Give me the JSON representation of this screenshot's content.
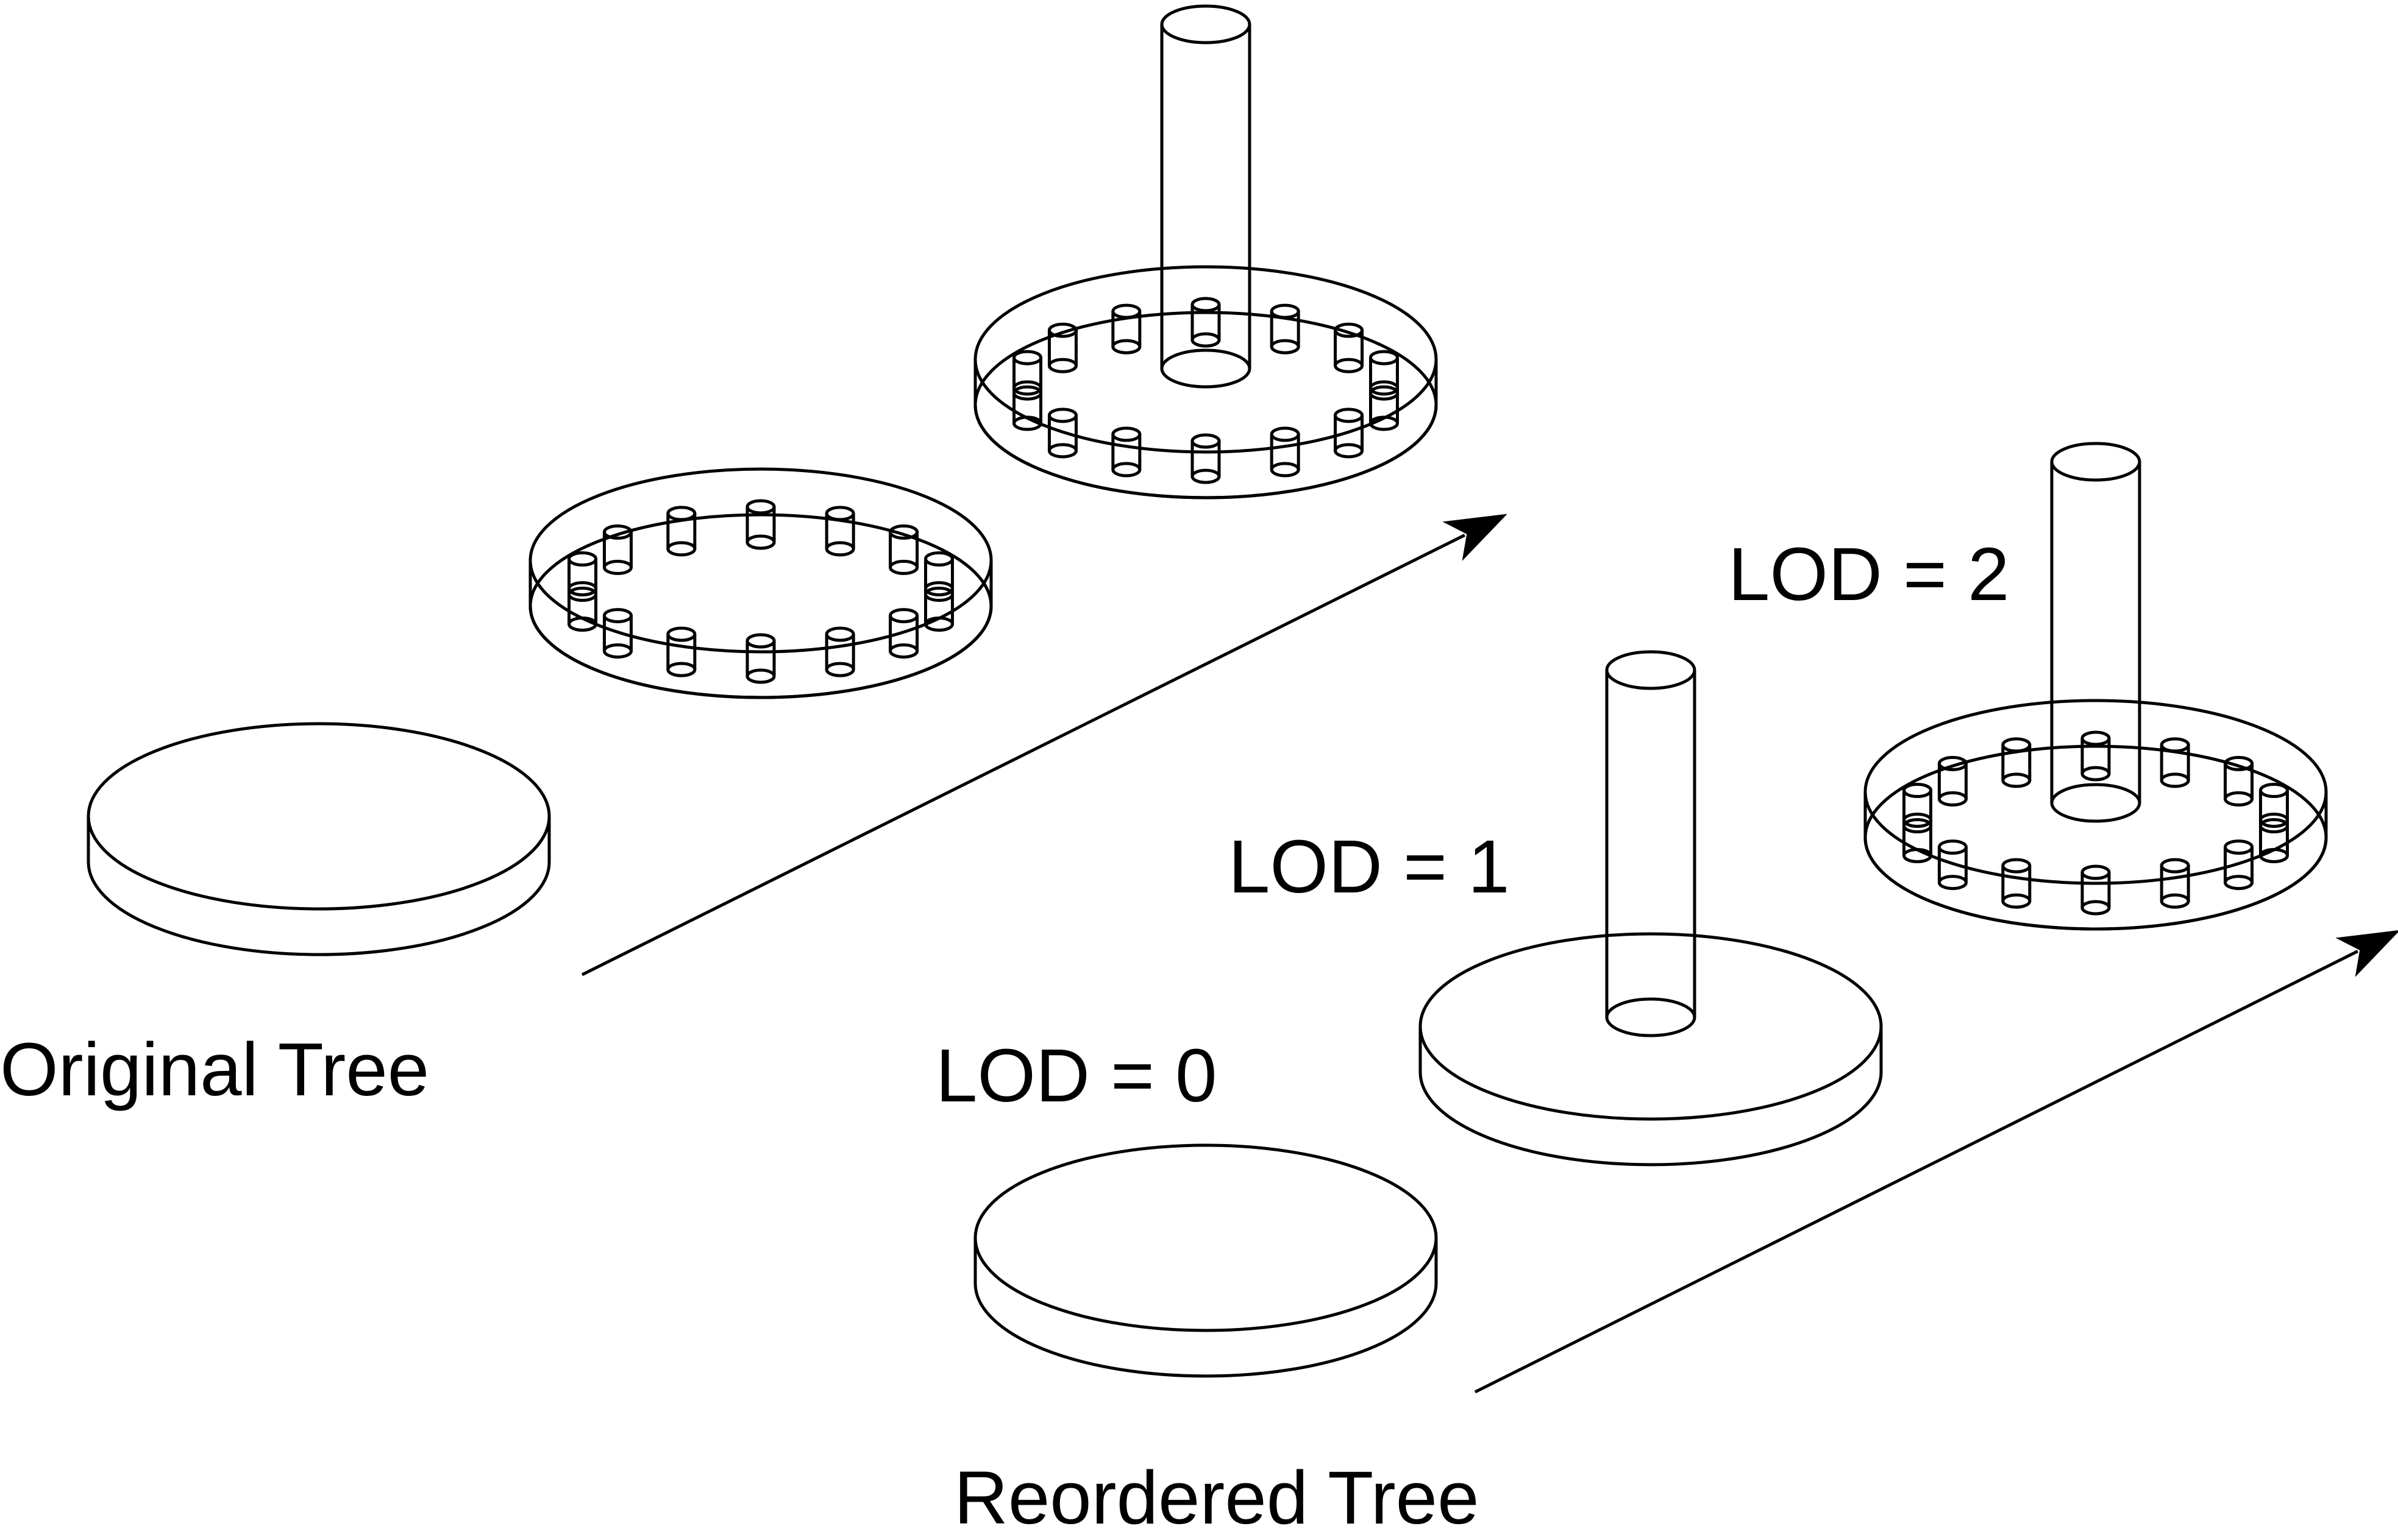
{
  "labels": {
    "original_tree": "Original Tree",
    "reordered_tree": "Reordered Tree",
    "lod_0": "LOD = 0",
    "lod_1": "LOD = 1",
    "lod_2": "LOD = 2"
  },
  "stroke_color": "#000000",
  "background_color": "#ffffff"
}
